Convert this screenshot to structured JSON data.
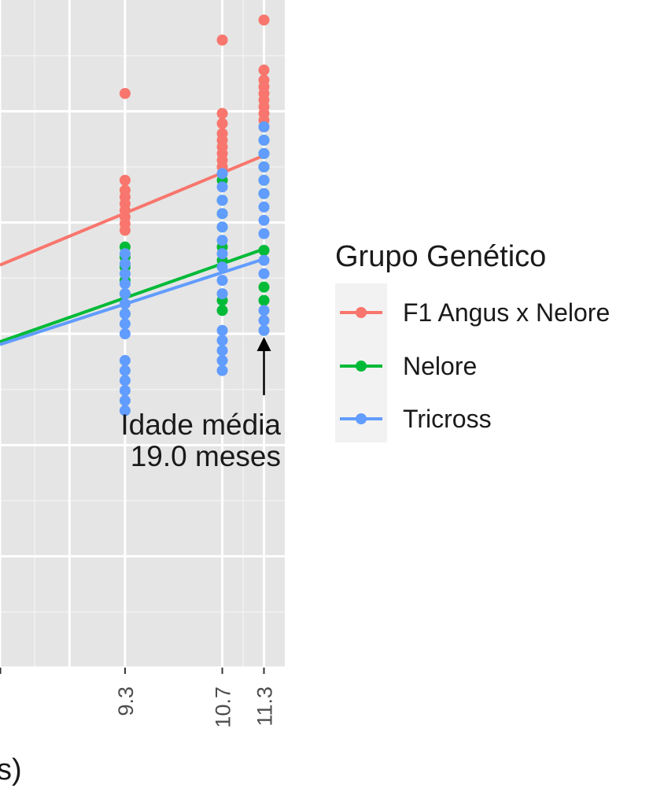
{
  "chart_data": {
    "type": "scatter",
    "title": "",
    "xlabel": "",
    "ylabel": "",
    "x_tick_labels": [
      "9.3",
      "10.7",
      "11.3"
    ],
    "x_tick_values": [
      9.3,
      10.7,
      11.3
    ],
    "x_range_visible": [
      7.5,
      11.6
    ],
    "y_range_visible": [
      0,
      100
    ],
    "grid": true,
    "legend": {
      "title": "Grupo Genético",
      "position": "right",
      "entries": [
        "F1 Angus x Nelore",
        "Nelore",
        "Tricross"
      ]
    },
    "annotation": {
      "line1": "Idade média",
      "line2": "19.0 meses",
      "x": 11.3,
      "arrow": true
    },
    "series": [
      {
        "name": "F1 Angus x Nelore",
        "color": "#F8766D",
        "points": [
          [
            9.3,
            86
          ],
          [
            9.3,
            73
          ],
          [
            9.3,
            71.5
          ],
          [
            9.3,
            70.5
          ],
          [
            9.3,
            69.5
          ],
          [
            9.3,
            68.5
          ],
          [
            9.3,
            67.5
          ],
          [
            9.3,
            66.5
          ],
          [
            9.3,
            65.5
          ],
          [
            10.7,
            94
          ],
          [
            10.7,
            83
          ],
          [
            10.7,
            81.5
          ],
          [
            10.7,
            80
          ],
          [
            10.7,
            79
          ],
          [
            10.7,
            78
          ],
          [
            10.7,
            77
          ],
          [
            10.7,
            76
          ],
          [
            10.7,
            75
          ],
          [
            11.3,
            97
          ],
          [
            11.3,
            89.5
          ],
          [
            11.3,
            88
          ],
          [
            11.3,
            87
          ],
          [
            11.3,
            86
          ],
          [
            11.3,
            85
          ],
          [
            11.3,
            84
          ],
          [
            11.3,
            83
          ],
          [
            11.3,
            82
          ],
          [
            11.3,
            81
          ]
        ],
        "fit": [
          [
            7.5,
            60.3
          ],
          [
            11.3,
            76.7
          ]
        ]
      },
      {
        "name": "Nelore",
        "color": "#00BA38",
        "points": [
          [
            9.3,
            63
          ],
          [
            9.3,
            61.5
          ],
          [
            9.3,
            60
          ],
          [
            9.3,
            58
          ],
          [
            9.3,
            56
          ],
          [
            9.3,
            53
          ],
          [
            10.7,
            73
          ],
          [
            10.7,
            70
          ],
          [
            10.7,
            68
          ],
          [
            10.7,
            66
          ],
          [
            10.7,
            63
          ],
          [
            10.7,
            61
          ],
          [
            10.7,
            55
          ],
          [
            10.7,
            53.5
          ],
          [
            11.3,
            79
          ],
          [
            11.3,
            77
          ],
          [
            11.3,
            75
          ],
          [
            11.3,
            73
          ],
          [
            11.3,
            71
          ],
          [
            11.3,
            62.5
          ],
          [
            11.3,
            57
          ],
          [
            11.3,
            55
          ]
        ],
        "fit": [
          [
            7.5,
            48.8
          ],
          [
            11.3,
            62.7
          ]
        ]
      },
      {
        "name": "Tricross",
        "color": "#619CFF",
        "points": [
          [
            9.3,
            62
          ],
          [
            9.3,
            60.5
          ],
          [
            9.3,
            59
          ],
          [
            9.3,
            57.5
          ],
          [
            9.3,
            56
          ],
          [
            9.3,
            54.5
          ],
          [
            9.3,
            53
          ],
          [
            9.3,
            51.5
          ],
          [
            9.3,
            50
          ],
          [
            9.3,
            46
          ],
          [
            9.3,
            44.5
          ],
          [
            9.3,
            43
          ],
          [
            9.3,
            41.5
          ],
          [
            9.3,
            40
          ],
          [
            9.3,
            38.5
          ],
          [
            10.7,
            74
          ],
          [
            10.7,
            72
          ],
          [
            10.7,
            70
          ],
          [
            10.7,
            68
          ],
          [
            10.7,
            66
          ],
          [
            10.7,
            64
          ],
          [
            10.7,
            62
          ],
          [
            10.7,
            60
          ],
          [
            10.7,
            58
          ],
          [
            10.7,
            56
          ],
          [
            10.7,
            50.5
          ],
          [
            10.7,
            49
          ],
          [
            10.7,
            47.5
          ],
          [
            10.7,
            46
          ],
          [
            10.7,
            44.5
          ],
          [
            11.3,
            81
          ],
          [
            11.3,
            79
          ],
          [
            11.3,
            77
          ],
          [
            11.3,
            75
          ],
          [
            11.3,
            73
          ],
          [
            11.3,
            71
          ],
          [
            11.3,
            69
          ],
          [
            11.3,
            67
          ],
          [
            11.3,
            65
          ],
          [
            11.3,
            61
          ],
          [
            11.3,
            59
          ],
          [
            11.3,
            53.5
          ],
          [
            11.3,
            52
          ],
          [
            11.3,
            50.5
          ]
        ],
        "fit": [
          [
            7.5,
            48.4
          ],
          [
            11.3,
            61.2
          ]
        ]
      }
    ]
  }
}
